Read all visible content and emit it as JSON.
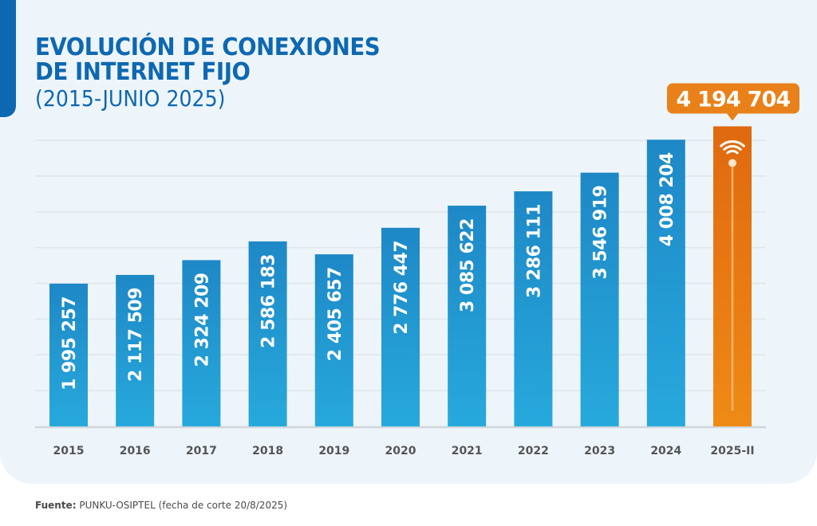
{
  "title_line1": "EVOLUCIÓN DE CONEXIONES",
  "title_line2": "DE INTERNET FIJO",
  "subtitle": "(2015-JUNIO 2025)",
  "source_label": "Fuente:",
  "source_text": "PUNKU-OSIPTEL (fecha de corte 20/8/2025)",
  "colors": {
    "primary_blue": "#0e68b1",
    "bar_blue_top": "#1e88c6",
    "bar_blue_bottom": "#27a9dc",
    "highlight_orange_top": "#e0690f",
    "highlight_orange_bottom": "#ef8a15",
    "background": "#edf5fb",
    "axis_text": "#555555"
  },
  "chart_data": {
    "type": "bar",
    "title": "EVOLUCIÓN DE CONEXIONES DE INTERNET FIJO (2015-JUNIO 2025)",
    "xlabel": "",
    "ylabel": "",
    "categories": [
      "2015",
      "2016",
      "2017",
      "2018",
      "2019",
      "2020",
      "2021",
      "2022",
      "2023",
      "2024",
      "2025-II"
    ],
    "values": [
      1995257,
      2117509,
      2324209,
      2586183,
      2405657,
      2776447,
      3085622,
      3286111,
      3546919,
      4008204,
      4194704
    ],
    "value_labels": [
      "1 995 257",
      "2 117 509",
      "2 324 209",
      "2 586 183",
      "2 405 657",
      "2 776 447",
      "3 085 622",
      "3 286 111",
      "3 546 919",
      "4 008 204",
      "4 194 704"
    ],
    "highlight_index": 10,
    "highlight_icon": "wifi-icon",
    "ylim": [
      0,
      4000000
    ],
    "gridline_step": 500000,
    "grid": true,
    "yaxis_visible": false,
    "legend": "none"
  }
}
